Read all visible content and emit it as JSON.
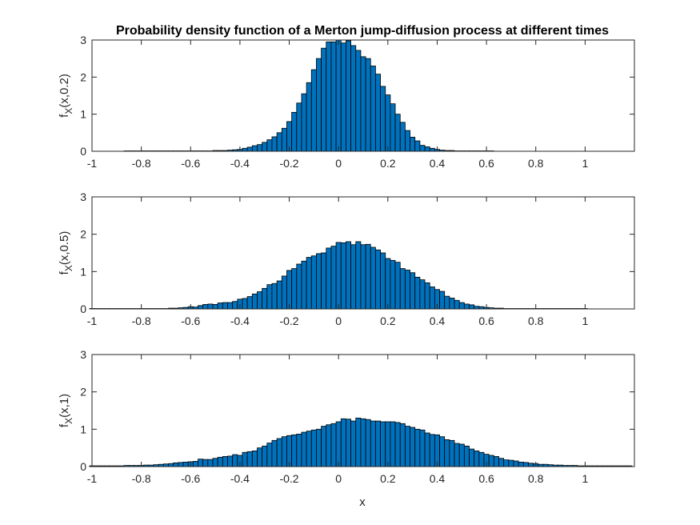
{
  "chart_data": {
    "type": "bar",
    "title": "Probability density function of a Merton jump-diffusion process at different times",
    "xlabel": "x",
    "xlim": [
      -1,
      1.2
    ],
    "ylim": [
      0,
      3
    ],
    "xticks": [
      -1,
      -0.8,
      -0.6,
      -0.4,
      -0.2,
      0,
      0.2,
      0.4,
      0.6,
      0.8,
      1
    ],
    "xtick_labels": [
      "-1",
      "-0.8",
      "-0.6",
      "-0.4",
      "-0.2",
      "0",
      "0.2",
      "0.4",
      "0.6",
      "0.8",
      "1"
    ],
    "yticks": [
      0,
      1,
      2,
      3
    ],
    "ytick_labels": [
      "0",
      "1",
      "2",
      "3"
    ],
    "bar_color": "#0072BD",
    "edge_color": "#000000",
    "bin_width": 0.02,
    "panels": [
      {
        "ylabel_main": "f",
        "ylabel_sub": "X",
        "ylabel_arg": "(x,0.2)",
        "series": {
          "name": "",
          "x": [
            -0.86,
            -0.84,
            -0.82,
            -0.8,
            -0.78,
            -0.76,
            -0.74,
            -0.72,
            -0.7,
            -0.68,
            -0.66,
            -0.64,
            -0.62,
            -0.6,
            -0.58,
            -0.56,
            -0.54,
            -0.52,
            -0.5,
            -0.48,
            -0.46,
            -0.44,
            -0.42,
            -0.4,
            -0.38,
            -0.36,
            -0.34,
            -0.32,
            -0.3,
            -0.28,
            -0.26,
            -0.24,
            -0.22,
            -0.2,
            -0.18,
            -0.16,
            -0.14,
            -0.12,
            -0.1,
            -0.08,
            -0.06,
            -0.04,
            -0.02,
            0,
            0.02,
            0.04,
            0.06,
            0.08,
            0.1,
            0.12,
            0.14,
            0.16,
            0.18,
            0.2,
            0.22,
            0.24,
            0.26,
            0.28,
            0.3,
            0.32,
            0.34,
            0.36,
            0.38,
            0.4,
            0.42,
            0.44,
            0.46,
            0.48,
            0.5,
            0.52,
            0.54,
            0.56,
            0.58,
            0.6,
            0.62
          ],
          "values": [
            0.01,
            0.01,
            0.01,
            0.01,
            0.01,
            0.01,
            0.01,
            0.01,
            0.01,
            0.01,
            0.01,
            0.01,
            0.01,
            0.01,
            0.01,
            0.01,
            0.01,
            0.01,
            0.02,
            0.02,
            0.02,
            0.03,
            0.04,
            0.05,
            0.08,
            0.11,
            0.15,
            0.18,
            0.24,
            0.31,
            0.39,
            0.5,
            0.62,
            0.8,
            1.05,
            1.3,
            1.55,
            1.85,
            2.2,
            2.5,
            2.78,
            2.95,
            2.95,
            3.0,
            2.92,
            2.98,
            2.85,
            2.72,
            2.55,
            2.5,
            2.3,
            2.08,
            1.75,
            1.52,
            1.28,
            1.0,
            0.78,
            0.56,
            0.38,
            0.28,
            0.16,
            0.12,
            0.08,
            0.05,
            0.03,
            0.02,
            0.02,
            0.01,
            0.01,
            0.01,
            0.01,
            0.01,
            0.01,
            0.01,
            0.01
          ]
        }
      },
      {
        "ylabel_main": "f",
        "ylabel_sub": "X",
        "ylabel_arg": "(x,0.5)",
        "series": {
          "name": "",
          "x": [
            -1.0,
            -0.98,
            -0.96,
            -0.94,
            -0.92,
            -0.9,
            -0.88,
            -0.86,
            -0.84,
            -0.82,
            -0.8,
            -0.78,
            -0.76,
            -0.74,
            -0.72,
            -0.7,
            -0.68,
            -0.66,
            -0.64,
            -0.62,
            -0.6,
            -0.58,
            -0.56,
            -0.54,
            -0.52,
            -0.5,
            -0.48,
            -0.46,
            -0.44,
            -0.42,
            -0.4,
            -0.38,
            -0.36,
            -0.34,
            -0.32,
            -0.3,
            -0.28,
            -0.26,
            -0.24,
            -0.22,
            -0.2,
            -0.18,
            -0.16,
            -0.14,
            -0.12,
            -0.1,
            -0.08,
            -0.06,
            -0.04,
            -0.02,
            0,
            0.02,
            0.04,
            0.06,
            0.08,
            0.1,
            0.12,
            0.14,
            0.16,
            0.18,
            0.2,
            0.22,
            0.24,
            0.26,
            0.28,
            0.3,
            0.32,
            0.34,
            0.36,
            0.38,
            0.4,
            0.42,
            0.44,
            0.46,
            0.48,
            0.5,
            0.52,
            0.54,
            0.56,
            0.58,
            0.6,
            0.62,
            0.64,
            0.66,
            0.68,
            0.7,
            0.72,
            0.74,
            0.76,
            0.78,
            0.8,
            0.82,
            0.84,
            0.86,
            0.88,
            0.9,
            0.92,
            0.94,
            0.96,
            0.98,
            1.0
          ],
          "values": [
            0.01,
            0.01,
            0.01,
            0.01,
            0.01,
            0.01,
            0.01,
            0.01,
            0.01,
            0.01,
            0.01,
            0.01,
            0.01,
            0.01,
            0.01,
            0.01,
            0.02,
            0.02,
            0.03,
            0.04,
            0.06,
            0.05,
            0.09,
            0.12,
            0.13,
            0.12,
            0.16,
            0.17,
            0.17,
            0.2,
            0.26,
            0.28,
            0.33,
            0.4,
            0.46,
            0.55,
            0.65,
            0.68,
            0.75,
            0.88,
            1.03,
            1.08,
            1.2,
            1.28,
            1.38,
            1.42,
            1.48,
            1.5,
            1.63,
            1.68,
            1.78,
            1.77,
            1.8,
            1.72,
            1.8,
            1.72,
            1.73,
            1.65,
            1.58,
            1.5,
            1.35,
            1.3,
            1.25,
            1.08,
            1.04,
            0.97,
            0.85,
            0.78,
            0.7,
            0.59,
            0.52,
            0.47,
            0.34,
            0.29,
            0.23,
            0.17,
            0.13,
            0.11,
            0.07,
            0.06,
            0.04,
            0.03,
            0.02,
            0.02,
            0.01,
            0.01,
            0.01,
            0.01,
            0.01,
            0.01,
            0.01,
            0.01,
            0.01,
            0.01,
            0.01,
            0.01,
            0.01,
            0.01,
            0.01,
            0.01,
            0.01
          ]
        }
      },
      {
        "ylabel_main": "f",
        "ylabel_sub": "X",
        "ylabel_arg": "(x,1)",
        "series": {
          "name": "",
          "x": [
            -1.0,
            -0.98,
            -0.96,
            -0.94,
            -0.92,
            -0.9,
            -0.88,
            -0.86,
            -0.84,
            -0.82,
            -0.8,
            -0.78,
            -0.76,
            -0.74,
            -0.72,
            -0.7,
            -0.68,
            -0.66,
            -0.64,
            -0.62,
            -0.6,
            -0.58,
            -0.56,
            -0.54,
            -0.52,
            -0.5,
            -0.48,
            -0.46,
            -0.44,
            -0.42,
            -0.4,
            -0.38,
            -0.36,
            -0.34,
            -0.32,
            -0.3,
            -0.28,
            -0.26,
            -0.24,
            -0.22,
            -0.2,
            -0.18,
            -0.16,
            -0.14,
            -0.12,
            -0.1,
            -0.08,
            -0.06,
            -0.04,
            -0.02,
            0,
            0.02,
            0.04,
            0.06,
            0.08,
            0.1,
            0.12,
            0.14,
            0.16,
            0.18,
            0.2,
            0.22,
            0.24,
            0.26,
            0.28,
            0.3,
            0.32,
            0.34,
            0.36,
            0.38,
            0.4,
            0.42,
            0.44,
            0.46,
            0.48,
            0.5,
            0.52,
            0.54,
            0.56,
            0.58,
            0.6,
            0.62,
            0.64,
            0.66,
            0.68,
            0.7,
            0.72,
            0.74,
            0.76,
            0.78,
            0.8,
            0.82,
            0.84,
            0.86,
            0.88,
            0.9,
            0.92,
            0.94,
            0.96,
            0.98,
            1.0,
            1.02,
            1.04,
            1.06,
            1.08,
            1.1,
            1.12,
            1.14,
            1.16,
            1.18
          ],
          "values": [
            0.02,
            0.02,
            0.02,
            0.02,
            0.02,
            0.02,
            0.02,
            0.03,
            0.03,
            0.03,
            0.03,
            0.04,
            0.04,
            0.05,
            0.06,
            0.07,
            0.08,
            0.1,
            0.11,
            0.12,
            0.13,
            0.14,
            0.2,
            0.19,
            0.19,
            0.22,
            0.25,
            0.27,
            0.28,
            0.32,
            0.3,
            0.38,
            0.4,
            0.42,
            0.5,
            0.55,
            0.63,
            0.7,
            0.75,
            0.8,
            0.83,
            0.85,
            0.87,
            0.92,
            0.95,
            0.98,
            1.0,
            1.08,
            1.12,
            1.15,
            1.2,
            1.28,
            1.27,
            1.22,
            1.3,
            1.28,
            1.26,
            1.22,
            1.22,
            1.2,
            1.2,
            1.2,
            1.18,
            1.15,
            1.08,
            1.05,
            1.0,
            0.98,
            0.9,
            0.86,
            0.85,
            0.8,
            0.72,
            0.7,
            0.62,
            0.6,
            0.55,
            0.47,
            0.42,
            0.38,
            0.33,
            0.3,
            0.27,
            0.22,
            0.18,
            0.17,
            0.15,
            0.12,
            0.11,
            0.09,
            0.08,
            0.06,
            0.06,
            0.05,
            0.04,
            0.04,
            0.03,
            0.03,
            0.03,
            0.02,
            0.02,
            0.02,
            0.02,
            0.02,
            0.02,
            0.02,
            0.02,
            0.02,
            0.02,
            0.02
          ]
        }
      }
    ]
  }
}
